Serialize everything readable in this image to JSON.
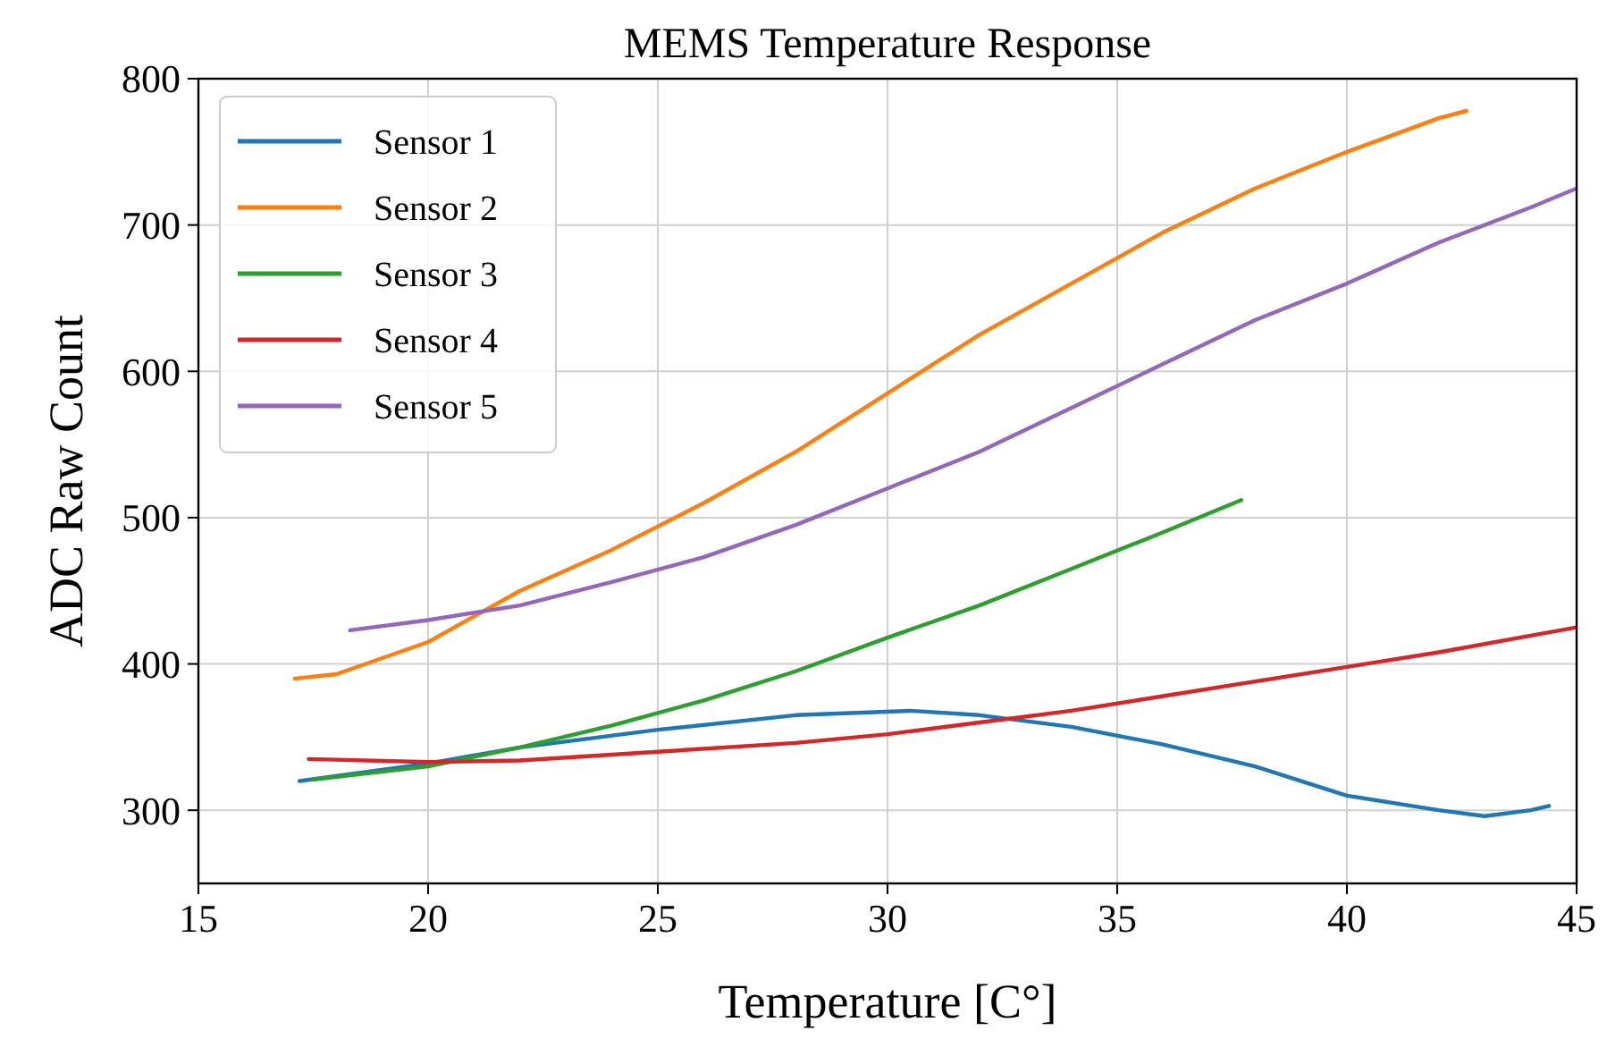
{
  "chart_data": {
    "type": "line",
    "title": "MEMS Temperature Response",
    "xlabel": "Temperature [C°]",
    "ylabel": "ADC Raw Count",
    "xlim": [
      15,
      45
    ],
    "xticks": [
      15,
      20,
      25,
      30,
      35,
      40,
      45
    ],
    "ylim": [
      250,
      800
    ],
    "yticks": [
      300,
      400,
      500,
      600,
      700,
      800
    ],
    "grid": true,
    "legend": "top left",
    "line_style": "solid",
    "series": [
      {
        "name": "Sensor 1",
        "color": "#1f77b4",
        "x": [
          17.2,
          20,
          22,
          25,
          28,
          30.5,
          32,
          34,
          36,
          38,
          40,
          42,
          43,
          44,
          44.4
        ],
        "values": [
          320,
          332,
          343,
          355,
          365,
          368,
          365,
          357,
          345,
          330,
          310,
          300,
          296,
          300,
          303
        ]
      },
      {
        "name": "Sensor 2",
        "color": "#ff7f0e",
        "x": [
          17.1,
          18,
          20,
          22,
          24,
          26,
          28,
          30,
          32,
          34,
          36,
          38,
          40,
          42,
          42.6
        ],
        "values": [
          390,
          393,
          415,
          450,
          478,
          510,
          545,
          585,
          625,
          660,
          695,
          725,
          750,
          773,
          778
        ]
      },
      {
        "name": "Sensor 3",
        "color": "#2ca02c",
        "x": [
          17.5,
          20,
          22,
          24,
          26,
          28,
          30,
          32,
          34,
          36,
          37.7
        ],
        "values": [
          321,
          330,
          343,
          358,
          375,
          395,
          418,
          440,
          465,
          490,
          512
        ]
      },
      {
        "name": "Sensor 4",
        "color": "#d62728",
        "x": [
          17.4,
          20,
          22,
          25,
          28,
          30,
          32,
          34,
          36,
          38,
          40,
          42,
          45
        ],
        "values": [
          335,
          333,
          334,
          340,
          346,
          352,
          360,
          368,
          378,
          388,
          398,
          408,
          425
        ]
      },
      {
        "name": "Sensor 5",
        "color": "#9467bd",
        "x": [
          18.3,
          20,
          22,
          24,
          26,
          28,
          30,
          32,
          34,
          36,
          38,
          40,
          42,
          44,
          45
        ],
        "values": [
          423,
          430,
          440,
          456,
          473,
          495,
          520,
          545,
          575,
          605,
          635,
          660,
          688,
          712,
          725
        ]
      }
    ]
  }
}
